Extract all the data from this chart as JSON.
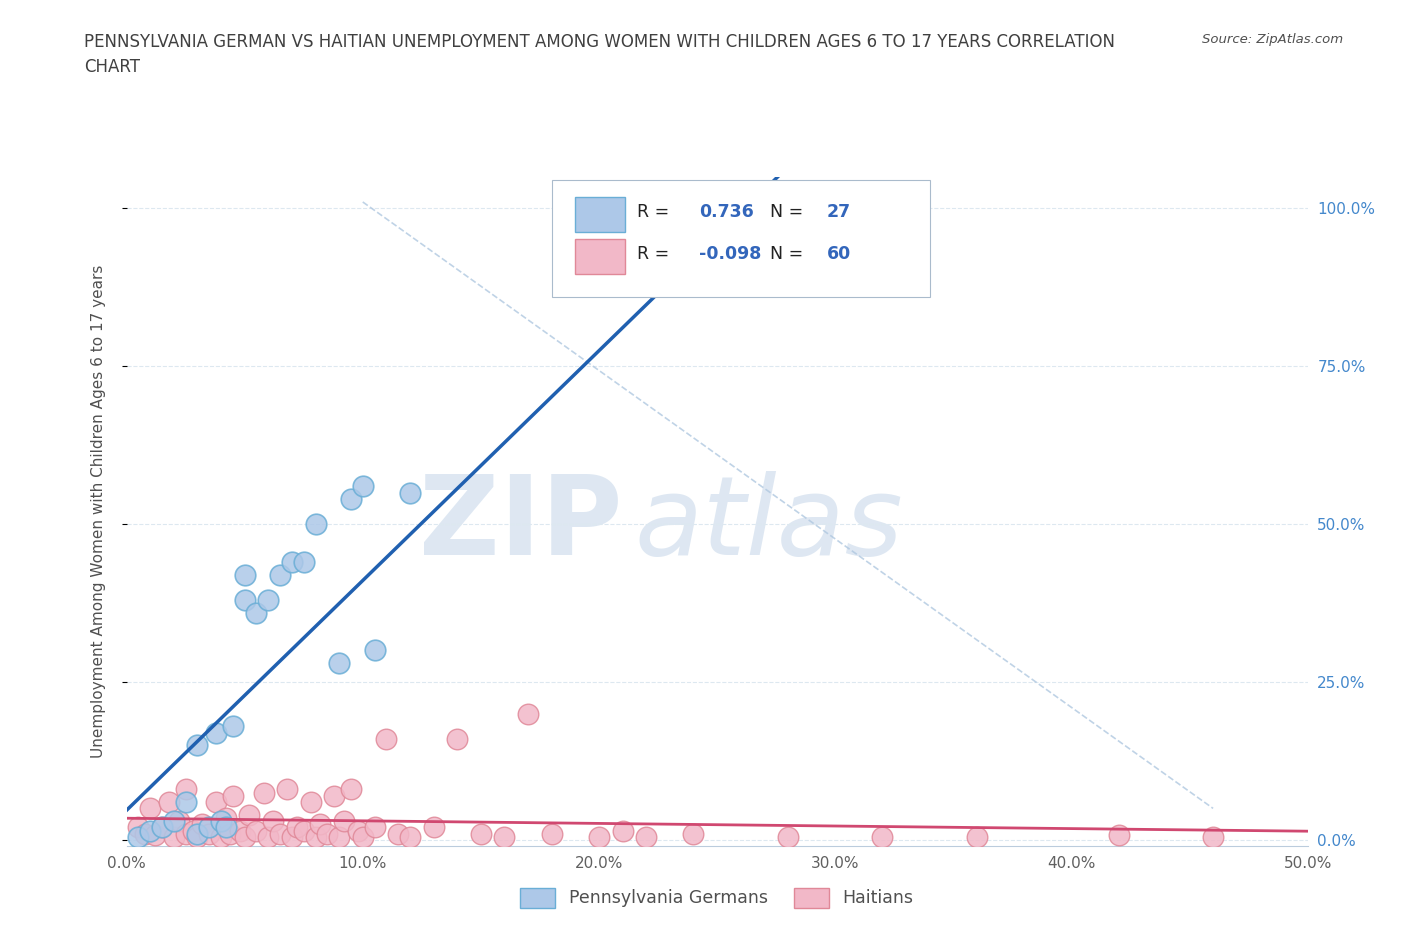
{
  "title_line1": "PENNSYLVANIA GERMAN VS HAITIAN UNEMPLOYMENT AMONG WOMEN WITH CHILDREN AGES 6 TO 17 YEARS CORRELATION",
  "title_line2": "CHART",
  "source": "Source: ZipAtlas.com",
  "ylabel": "Unemployment Among Women with Children Ages 6 to 17 years",
  "xlim": [
    0,
    0.5
  ],
  "ylim": [
    -0.01,
    1.05
  ],
  "xticks": [
    0.0,
    0.1,
    0.2,
    0.3,
    0.4,
    0.5
  ],
  "yticks": [
    0.0,
    0.25,
    0.5,
    0.75,
    1.0
  ],
  "xticklabels": [
    "0.0%",
    "10.0%",
    "20.0%",
    "30.0%",
    "40.0%",
    "50.0%"
  ],
  "yticklabels_right": [
    "0.0%",
    "25.0%",
    "50.0%",
    "75.0%",
    "100.0%"
  ],
  "pg_color": "#adc8e8",
  "pg_edge_color": "#6aaed6",
  "haitian_color": "#f2b8c8",
  "haitian_edge_color": "#e08898",
  "pg_R": 0.736,
  "pg_N": 27,
  "haitian_R": -0.098,
  "haitian_N": 60,
  "pg_line_color": "#2060b0",
  "haitian_line_color": "#d04870",
  "ref_line_color": "#b0c8e0",
  "watermark_zip": "ZIP",
  "watermark_atlas": "atlas",
  "watermark_color_zip": "#c8d8ea",
  "watermark_color_atlas": "#c8d8ea",
  "legend_label_pg": "Pennsylvania Germans",
  "legend_label_h": "Haitians",
  "pg_scatter_x": [
    0.005,
    0.01,
    0.015,
    0.02,
    0.025,
    0.03,
    0.03,
    0.035,
    0.038,
    0.04,
    0.042,
    0.045,
    0.05,
    0.05,
    0.055,
    0.06,
    0.065,
    0.07,
    0.075,
    0.08,
    0.09,
    0.095,
    0.1,
    0.105,
    0.12,
    0.27,
    0.28
  ],
  "pg_scatter_y": [
    0.005,
    0.015,
    0.02,
    0.03,
    0.06,
    0.01,
    0.15,
    0.02,
    0.17,
    0.03,
    0.02,
    0.18,
    0.38,
    0.42,
    0.36,
    0.38,
    0.42,
    0.44,
    0.44,
    0.5,
    0.28,
    0.54,
    0.56,
    0.3,
    0.55,
    0.95,
    0.95
  ],
  "haitian_scatter_x": [
    0.005,
    0.008,
    0.01,
    0.012,
    0.015,
    0.018,
    0.02,
    0.022,
    0.025,
    0.025,
    0.028,
    0.03,
    0.032,
    0.035,
    0.038,
    0.04,
    0.042,
    0.044,
    0.045,
    0.048,
    0.05,
    0.052,
    0.055,
    0.058,
    0.06,
    0.062,
    0.065,
    0.068,
    0.07,
    0.072,
    0.075,
    0.078,
    0.08,
    0.082,
    0.085,
    0.088,
    0.09,
    0.092,
    0.095,
    0.098,
    0.1,
    0.105,
    0.11,
    0.115,
    0.12,
    0.13,
    0.14,
    0.15,
    0.16,
    0.17,
    0.18,
    0.2,
    0.21,
    0.22,
    0.24,
    0.28,
    0.32,
    0.36,
    0.42,
    0.46
  ],
  "haitian_scatter_y": [
    0.02,
    0.01,
    0.05,
    0.008,
    0.02,
    0.06,
    0.005,
    0.03,
    0.01,
    0.08,
    0.015,
    0.005,
    0.025,
    0.01,
    0.06,
    0.005,
    0.035,
    0.01,
    0.07,
    0.015,
    0.005,
    0.04,
    0.015,
    0.075,
    0.005,
    0.03,
    0.01,
    0.08,
    0.005,
    0.02,
    0.015,
    0.06,
    0.005,
    0.025,
    0.01,
    0.07,
    0.005,
    0.03,
    0.08,
    0.015,
    0.005,
    0.02,
    0.16,
    0.01,
    0.005,
    0.02,
    0.16,
    0.01,
    0.005,
    0.2,
    0.01,
    0.005,
    0.015,
    0.005,
    0.01,
    0.005,
    0.005,
    0.005,
    0.008,
    0.005
  ],
  "background_color": "#ffffff",
  "grid_color": "#dde8f0",
  "title_color": "#404040",
  "axis_label_color": "#505050",
  "right_tick_color": "#4488cc",
  "tick_label_color": "#606060"
}
